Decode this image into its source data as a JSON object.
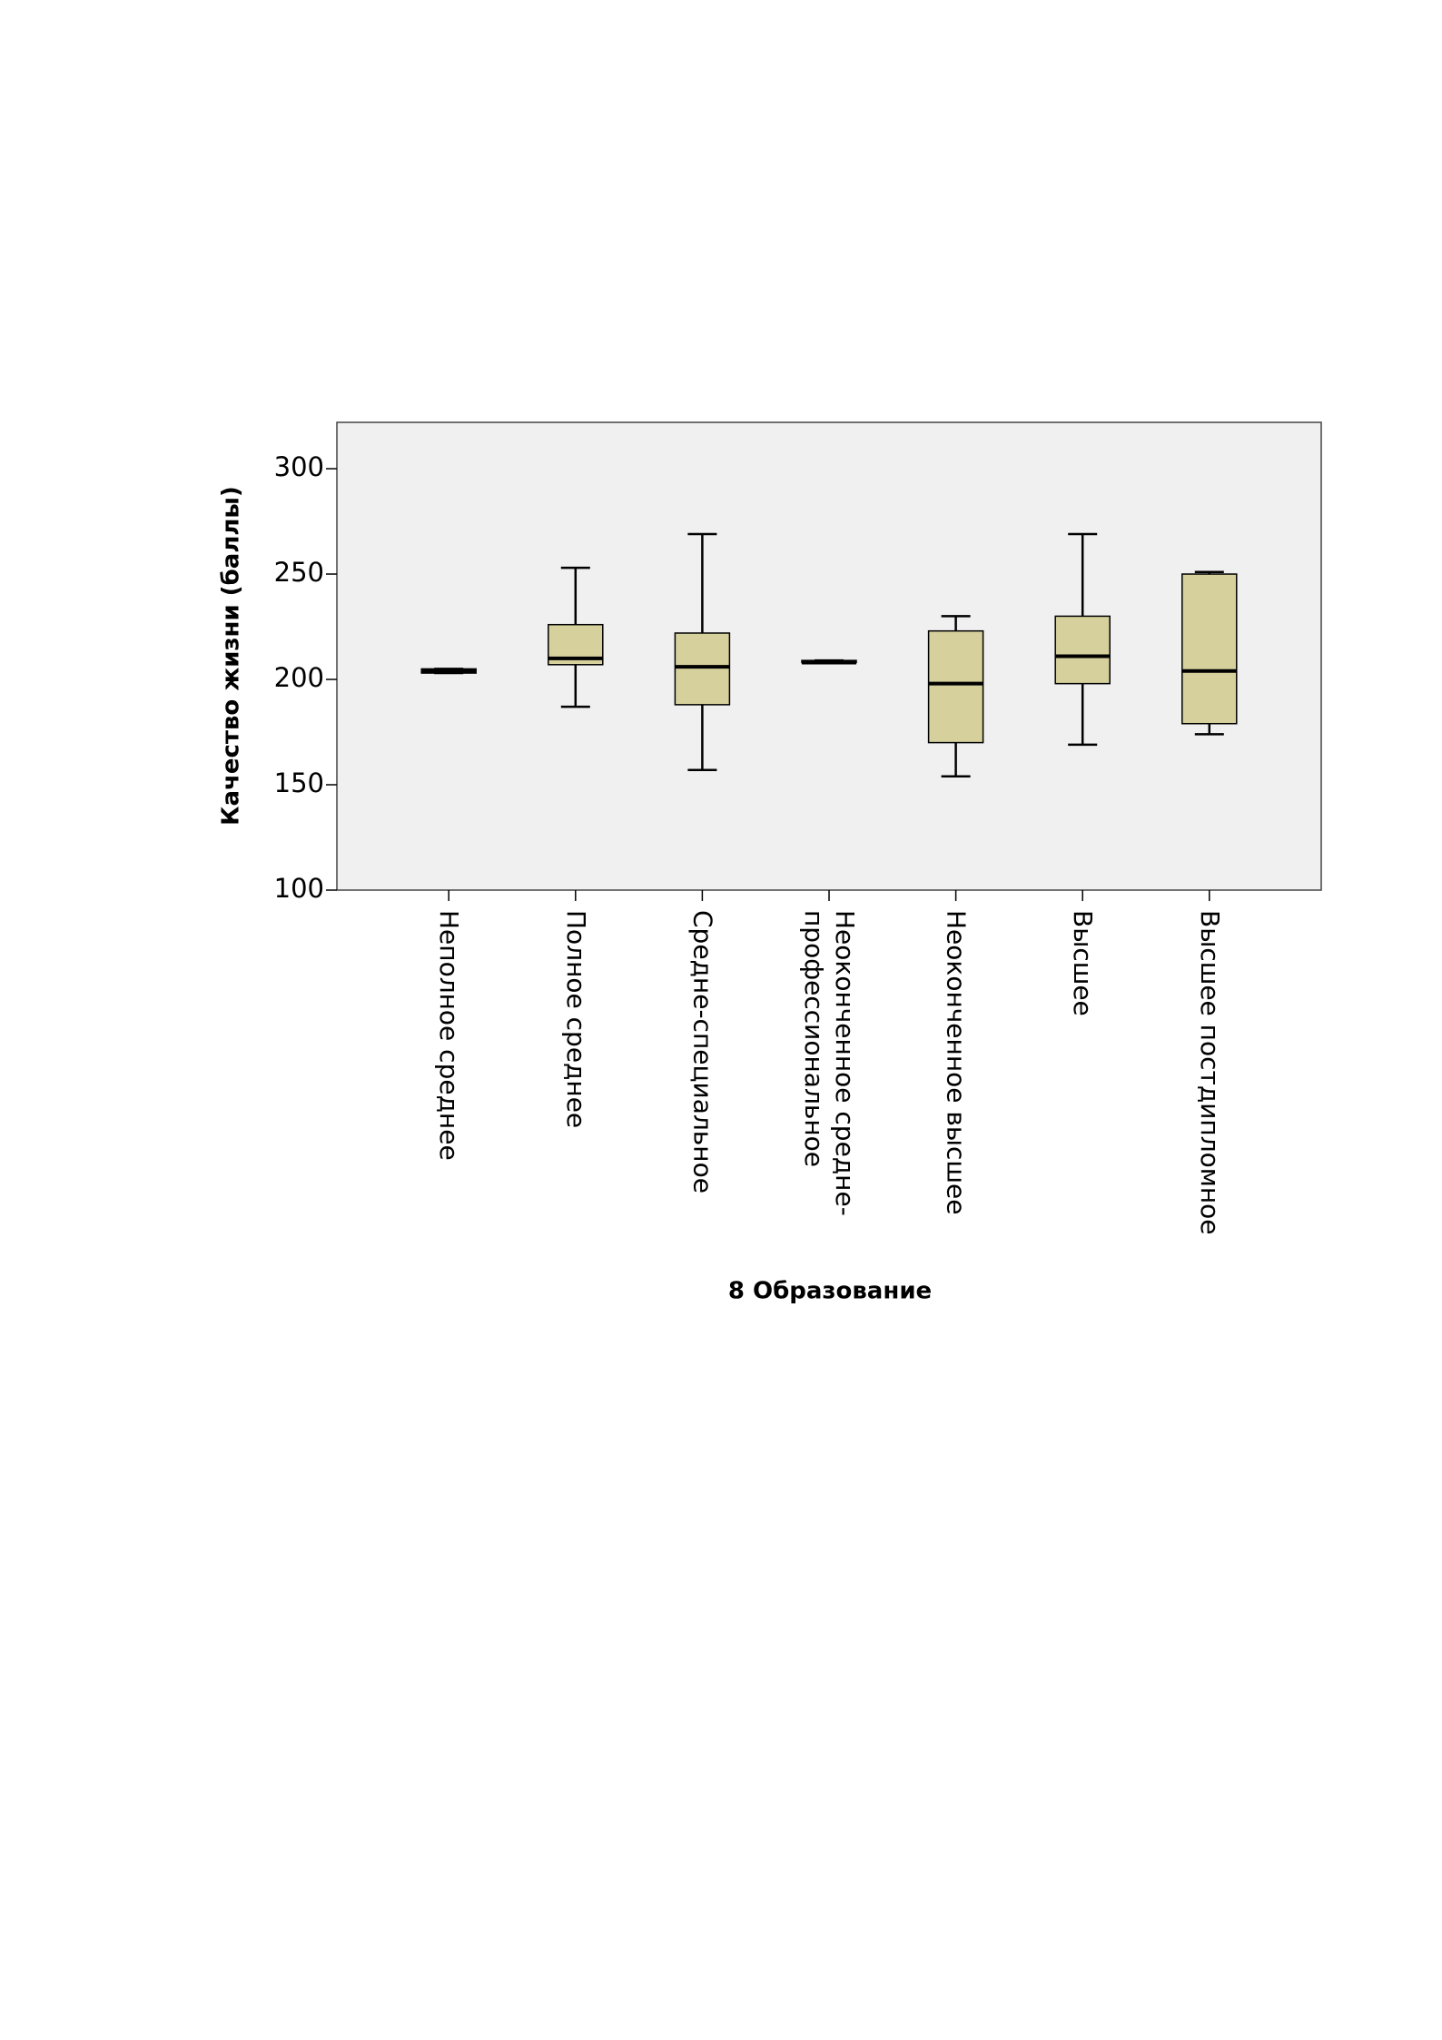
{
  "chart_data": {
    "type": "box",
    "x_label": "8 Образование",
    "y_label": "Качество жизни (баллы)",
    "categories": [
      "Неполное среднее",
      "Полное среднее",
      "Средне-специальное",
      "Неоконченное средне-\nпрофессиональное",
      "Неоконченное высшее",
      "Высшее",
      "Высшее постдипломное"
    ],
    "boxes": [
      {
        "min": 203,
        "q1": 203,
        "median": 204,
        "q3": 205,
        "max": 205
      },
      {
        "min": 187,
        "q1": 207,
        "median": 210,
        "q3": 226,
        "max": 253
      },
      {
        "min": 157,
        "q1": 188,
        "median": 206,
        "q3": 222,
        "max": 269
      },
      {
        "min": 208,
        "q1": 208,
        "median": 208,
        "q3": 209,
        "max": 209
      },
      {
        "min": 154,
        "q1": 170,
        "median": 198,
        "q3": 223,
        "max": 230
      },
      {
        "min": 169,
        "q1": 198,
        "median": 211,
        "q3": 230,
        "max": 269
      },
      {
        "min": 174,
        "q1": 179,
        "median": 204,
        "q3": 250,
        "max": 251
      }
    ],
    "color": "#d5d09c",
    "background": "#f0f0f0",
    "ylim": [
      100,
      322
    ],
    "yticks": [
      100,
      150,
      200,
      250,
      300
    ]
  }
}
